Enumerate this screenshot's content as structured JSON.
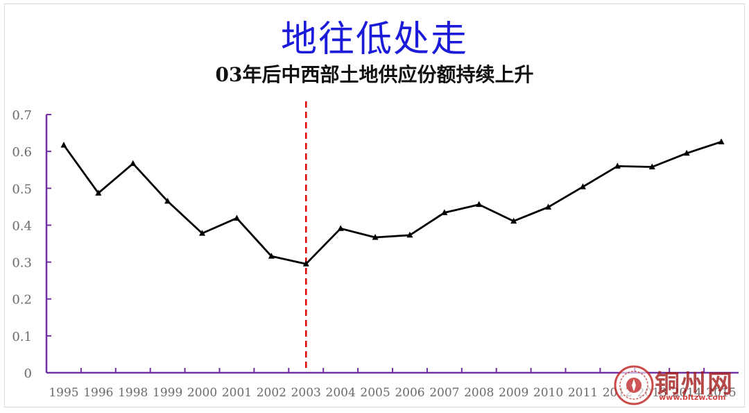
{
  "title": "地往低处走",
  "subtitle": "03年后中西部土地供应份额持续上升",
  "chart_data": {
    "type": "line",
    "categories": [
      "1995",
      "1996",
      "1998",
      "1999",
      "2000",
      "2001",
      "2002",
      "2003",
      "2004",
      "2005",
      "2006",
      "2007",
      "2008",
      "2009",
      "2010",
      "2011",
      "2012",
      "2013",
      "2014",
      "2015"
    ],
    "values": [
      0.617,
      0.487,
      0.567,
      0.465,
      0.378,
      0.419,
      0.316,
      0.295,
      0.391,
      0.367,
      0.373,
      0.434,
      0.456,
      0.411,
      0.449,
      0.504,
      0.56,
      0.558,
      0.595,
      0.626
    ],
    "ylim": [
      0,
      0.7
    ],
    "yticks": [
      "0",
      "0.1",
      "0.2",
      "0.3",
      "0.4",
      "0.5",
      "0.6",
      "0.7"
    ],
    "marker": "triangle",
    "line_color": "#000000",
    "axis_color": "#7030a0",
    "annotation": {
      "type": "vertical-dashed-line",
      "at_category": "2003",
      "color": "#e00000"
    },
    "grid": false,
    "legend": "none"
  },
  "watermark": {
    "text": "铜州网",
    "url": "www.bltzw.com",
    "color": "#b01e1e"
  }
}
